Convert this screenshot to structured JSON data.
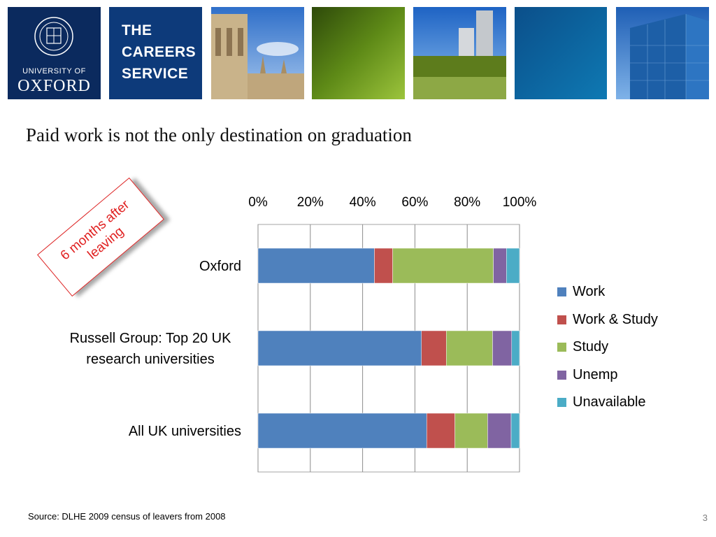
{
  "header": {
    "university_small": "UNIVERSITY OF",
    "university_big": "OXFORD",
    "service_lines": [
      "THE",
      "CAREERS",
      "SERVICE"
    ]
  },
  "slide": {
    "title": "Paid work is not the only destination on graduation",
    "stamp": "6 months after leaving",
    "source": "Source: DLHE 2009 census of leavers from 2008",
    "page_number": "3"
  },
  "colors": {
    "Work": "#4f81bd",
    "Work & Study": "#c0504d",
    "Study": "#9bbb59",
    "Unemp": "#8064a2",
    "Unavailable": "#4bacc6"
  },
  "chart_data": {
    "type": "bar",
    "orientation": "horizontal",
    "stacked": "percent",
    "title": "",
    "xlabel": "",
    "ylabel": "",
    "xlim": [
      0,
      100
    ],
    "x_ticks": [
      "0%",
      "20%",
      "40%",
      "60%",
      "80%",
      "100%"
    ],
    "x_axis_position": "top",
    "grid": true,
    "legend_position": "right",
    "categories": [
      "Oxford",
      "Russell Group: Top 20 UK research universities",
      "All UK universities"
    ],
    "category_lines": [
      [
        "Oxford"
      ],
      [
        "Russell Group: Top 20 UK",
        "research universities"
      ],
      [
        "All UK universities"
      ]
    ],
    "series": [
      {
        "name": "Work",
        "values": [
          44.5,
          62.5,
          64.5
        ]
      },
      {
        "name": "Work & Study",
        "values": [
          7,
          9.5,
          10.8
        ]
      },
      {
        "name": "Study",
        "values": [
          38.5,
          17.7,
          12.5
        ]
      },
      {
        "name": "Unemp",
        "values": [
          5,
          7.3,
          9
        ]
      },
      {
        "name": "Unavailable",
        "values": [
          5,
          3,
          3.2
        ]
      }
    ]
  }
}
